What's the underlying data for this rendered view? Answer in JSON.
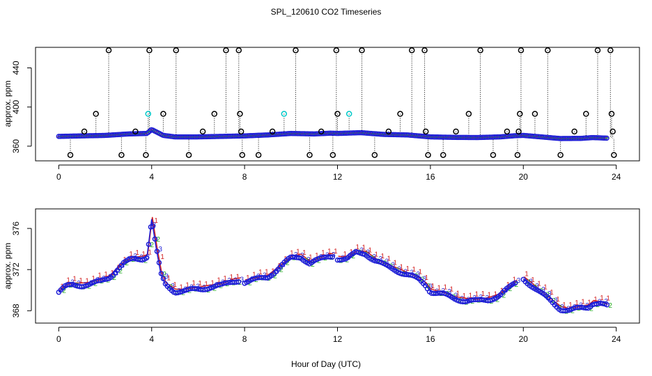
{
  "title": "SPL_120610  CO2 Timeseries",
  "xlabel": "Hour of Day (UTC)",
  "colors": {
    "blue": "#1f1fd6",
    "red": "#d21f1f",
    "green": "#1faa1f",
    "cyan": "#00c8c8",
    "black": "#000000",
    "orange": "#e8a000"
  },
  "chart_data": [
    {
      "type": "scatter",
      "name": "top-panel",
      "ylabel": "approx. ppm",
      "xlim": [
        -1,
        25
      ],
      "ylim": [
        345,
        461
      ],
      "xticks": [
        "0",
        "4",
        "8",
        "12",
        "16",
        "20",
        "24"
      ],
      "yticks": [
        "360",
        "400",
        "440"
      ],
      "baseline_series": [
        {
          "x": 0.0,
          "y": 370
        },
        {
          "x": 1.0,
          "y": 370.5
        },
        {
          "x": 2.0,
          "y": 371
        },
        {
          "x": 3.0,
          "y": 372.5
        },
        {
          "x": 3.8,
          "y": 373
        },
        {
          "x": 4.0,
          "y": 377
        },
        {
          "x": 4.5,
          "y": 371
        },
        {
          "x": 5.0,
          "y": 369.5
        },
        {
          "x": 6.0,
          "y": 369.5
        },
        {
          "x": 7.0,
          "y": 370
        },
        {
          "x": 8.0,
          "y": 370.5
        },
        {
          "x": 9.0,
          "y": 371.5
        },
        {
          "x": 10.0,
          "y": 373
        },
        {
          "x": 11.0,
          "y": 372.5
        },
        {
          "x": 11.7,
          "y": 373.3
        },
        {
          "x": 12.0,
          "y": 373
        },
        {
          "x": 13.0,
          "y": 373.8
        },
        {
          "x": 14.0,
          "y": 372
        },
        {
          "x": 15.0,
          "y": 371.5
        },
        {
          "x": 16.0,
          "y": 369.5
        },
        {
          "x": 17.0,
          "y": 369
        },
        {
          "x": 18.0,
          "y": 368.8
        },
        {
          "x": 19.0,
          "y": 369.5
        },
        {
          "x": 19.7,
          "y": 370.8
        },
        {
          "x": 20.0,
          "y": 371
        },
        {
          "x": 21.0,
          "y": 369
        },
        {
          "x": 21.6,
          "y": 367.8
        },
        {
          "x": 22.5,
          "y": 368
        },
        {
          "x": 23.0,
          "y": 368.8
        },
        {
          "x": 23.6,
          "y": 368.2
        }
      ],
      "outliers": [
        {
          "x": 0.5,
          "y": 351
        },
        {
          "x": 1.1,
          "y": 375
        },
        {
          "x": 1.6,
          "y": 393
        },
        {
          "x": 2.15,
          "y": 458
        },
        {
          "x": 2.7,
          "y": 351
        },
        {
          "x": 3.3,
          "y": 375
        },
        {
          "x": 3.75,
          "y": 351
        },
        {
          "x": 3.85,
          "y": 393
        },
        {
          "x": 3.9,
          "y": 458
        },
        {
          "x": 4.5,
          "y": 393
        },
        {
          "x": 5.05,
          "y": 458
        },
        {
          "x": 5.6,
          "y": 351
        },
        {
          "x": 6.2,
          "y": 375
        },
        {
          "x": 6.7,
          "y": 393
        },
        {
          "x": 7.2,
          "y": 458
        },
        {
          "x": 7.75,
          "y": 458
        },
        {
          "x": 7.8,
          "y": 393
        },
        {
          "x": 7.85,
          "y": 375
        },
        {
          "x": 7.9,
          "y": 351
        },
        {
          "x": 8.6,
          "y": 351
        },
        {
          "x": 9.2,
          "y": 375
        },
        {
          "x": 9.7,
          "y": 393
        },
        {
          "x": 10.2,
          "y": 458
        },
        {
          "x": 10.8,
          "y": 351
        },
        {
          "x": 11.3,
          "y": 375
        },
        {
          "x": 11.8,
          "y": 351
        },
        {
          "x": 11.95,
          "y": 458
        },
        {
          "x": 12.0,
          "y": 393
        },
        {
          "x": 12.5,
          "y": 393
        },
        {
          "x": 13.05,
          "y": 458
        },
        {
          "x": 13.6,
          "y": 351
        },
        {
          "x": 14.2,
          "y": 375
        },
        {
          "x": 14.7,
          "y": 393
        },
        {
          "x": 15.2,
          "y": 458
        },
        {
          "x": 15.75,
          "y": 458
        },
        {
          "x": 15.8,
          "y": 375
        },
        {
          "x": 15.9,
          "y": 351
        },
        {
          "x": 16.55,
          "y": 351
        },
        {
          "x": 17.1,
          "y": 375
        },
        {
          "x": 17.65,
          "y": 393
        },
        {
          "x": 18.15,
          "y": 458
        },
        {
          "x": 18.7,
          "y": 351
        },
        {
          "x": 19.3,
          "y": 375
        },
        {
          "x": 19.75,
          "y": 351
        },
        {
          "x": 19.8,
          "y": 375
        },
        {
          "x": 19.85,
          "y": 393
        },
        {
          "x": 19.9,
          "y": 458
        },
        {
          "x": 20.5,
          "y": 393
        },
        {
          "x": 21.05,
          "y": 458
        },
        {
          "x": 21.6,
          "y": 351
        },
        {
          "x": 22.2,
          "y": 375
        },
        {
          "x": 22.7,
          "y": 393
        },
        {
          "x": 23.2,
          "y": 458
        },
        {
          "x": 23.75,
          "y": 458
        },
        {
          "x": 23.8,
          "y": 393
        },
        {
          "x": 23.85,
          "y": 375
        },
        {
          "x": 23.9,
          "y": 351
        }
      ]
    },
    {
      "type": "line",
      "name": "bottom-panel",
      "ylabel": "approx. ppm",
      "xlim": [
        -1,
        25
      ],
      "ylim": [
        366.8,
        377.9
      ],
      "xticks": [
        "0",
        "4",
        "8",
        "12",
        "16",
        "20",
        "24"
      ],
      "yticks": [
        "368",
        "372",
        "376"
      ],
      "segments": [
        [
          {
            "x": 0.0,
            "y": 369.8
          },
          {
            "x": 0.3,
            "y": 370.3
          },
          {
            "x": 0.6,
            "y": 370.5
          },
          {
            "x": 1.0,
            "y": 370.5
          },
          {
            "x": 1.4,
            "y": 370.6
          },
          {
            "x": 1.8,
            "y": 370.8
          },
          {
            "x": 2.2,
            "y": 371.3
          },
          {
            "x": 2.5,
            "y": 372.0
          },
          {
            "x": 2.8,
            "y": 372.6
          },
          {
            "x": 3.2,
            "y": 373.0
          },
          {
            "x": 3.6,
            "y": 373.1
          },
          {
            "x": 3.8,
            "y": 373.3
          },
          {
            "x": 4.0,
            "y": 376.9
          },
          {
            "x": 4.2,
            "y": 374.0
          },
          {
            "x": 4.4,
            "y": 371.5
          },
          {
            "x": 4.6,
            "y": 370.5
          },
          {
            "x": 5.0,
            "y": 369.9
          },
          {
            "x": 5.5,
            "y": 369.9
          },
          {
            "x": 6.0,
            "y": 370.1
          },
          {
            "x": 6.5,
            "y": 370.3
          },
          {
            "x": 7.0,
            "y": 370.4
          },
          {
            "x": 7.5,
            "y": 370.9
          },
          {
            "x": 7.8,
            "y": 371.0
          }
        ],
        [
          {
            "x": 8.0,
            "y": 370.8
          },
          {
            "x": 8.5,
            "y": 371.0
          },
          {
            "x": 9.0,
            "y": 371.3
          },
          {
            "x": 9.5,
            "y": 372.2
          },
          {
            "x": 10.0,
            "y": 373.1
          },
          {
            "x": 10.4,
            "y": 373.3
          },
          {
            "x": 10.8,
            "y": 372.6
          },
          {
            "x": 11.2,
            "y": 372.9
          },
          {
            "x": 11.6,
            "y": 373.3
          },
          {
            "x": 11.8,
            "y": 373.4
          }
        ],
        [
          {
            "x": 12.0,
            "y": 373.1
          },
          {
            "x": 12.4,
            "y": 373.0
          },
          {
            "x": 12.8,
            "y": 373.6
          },
          {
            "x": 13.2,
            "y": 373.6
          },
          {
            "x": 13.6,
            "y": 372.9
          },
          {
            "x": 14.0,
            "y": 372.4
          },
          {
            "x": 14.5,
            "y": 372.0
          },
          {
            "x": 15.0,
            "y": 371.5
          },
          {
            "x": 15.5,
            "y": 371.0
          },
          {
            "x": 15.8,
            "y": 370.5
          },
          {
            "x": 16.0,
            "y": 369.9
          },
          {
            "x": 16.5,
            "y": 369.6
          },
          {
            "x": 17.0,
            "y": 369.2
          },
          {
            "x": 17.5,
            "y": 369.0
          },
          {
            "x": 18.0,
            "y": 368.9
          },
          {
            "x": 18.5,
            "y": 369.1
          },
          {
            "x": 19.0,
            "y": 369.5
          },
          {
            "x": 19.4,
            "y": 370.2
          },
          {
            "x": 19.7,
            "y": 370.8
          }
        ],
        [
          {
            "x": 20.0,
            "y": 371.1
          },
          {
            "x": 20.4,
            "y": 370.4
          },
          {
            "x": 20.8,
            "y": 369.6
          },
          {
            "x": 21.2,
            "y": 368.9
          },
          {
            "x": 21.6,
            "y": 368.2
          },
          {
            "x": 22.0,
            "y": 368.0
          },
          {
            "x": 22.4,
            "y": 368.2
          },
          {
            "x": 22.8,
            "y": 368.4
          },
          {
            "x": 23.0,
            "y": 368.8
          },
          {
            "x": 23.3,
            "y": 368.7
          },
          {
            "x": 23.6,
            "y": 368.4
          }
        ]
      ]
    }
  ]
}
